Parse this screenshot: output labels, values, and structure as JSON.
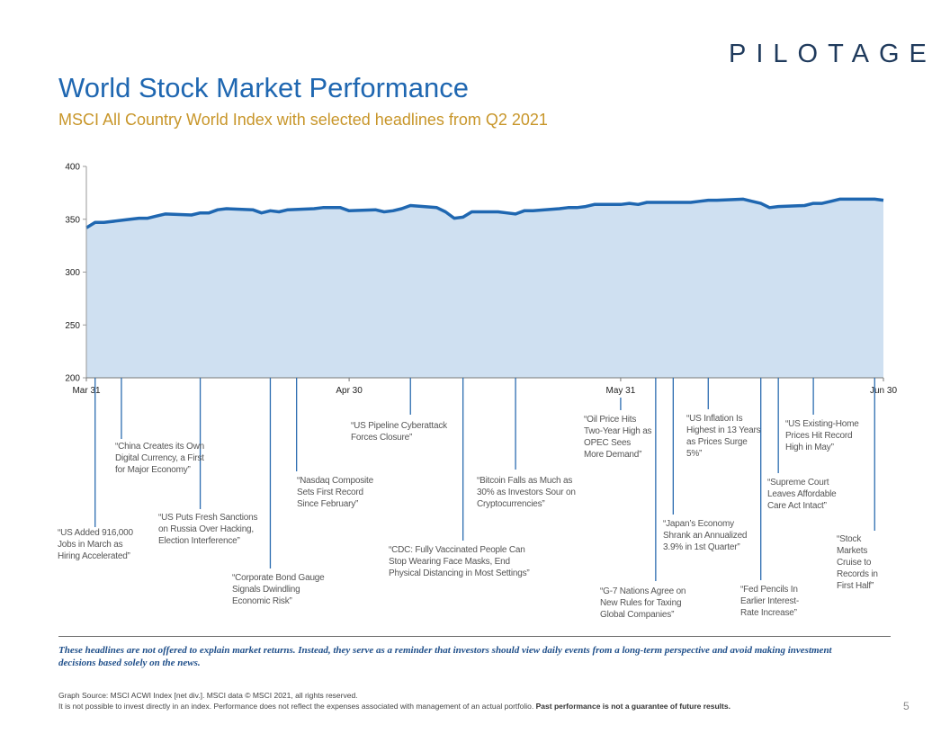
{
  "logo": {
    "text_a": "PIL",
    "text_o": "O",
    "text_b": "TAGE"
  },
  "title": "World Stock Market Performance",
  "subtitle": "MSCI All Country World Index with selected headlines from Q2 2021",
  "colors": {
    "title": "#1f67b1",
    "subtitle": "#c8962a",
    "area_fill": "#cfe0f1",
    "line": "#1f67b1",
    "leader": "#2b6cb0"
  },
  "chart_data": {
    "type": "area",
    "title": "",
    "xlabel": "",
    "ylabel": "",
    "ylim": [
      200,
      400
    ],
    "yticks": [
      "400",
      "350",
      "300",
      "250",
      "200"
    ],
    "yticks_values": [
      400,
      350,
      300,
      250,
      200
    ],
    "xtick_labels": [
      {
        "label": "Mar 31",
        "day": 0
      },
      {
        "label": "Apr 30",
        "day": 30
      },
      {
        "label": "May 31",
        "day": 61
      },
      {
        "label": "Jun 30",
        "day": 91
      }
    ],
    "series": [
      {
        "name": "MSCI ACWI Index (net div.)",
        "x": [
          0,
          1,
          2,
          5,
          6,
          7,
          8,
          9,
          12,
          13,
          14,
          15,
          16,
          19,
          20,
          21,
          22,
          23,
          26,
          27,
          28,
          29,
          30,
          33,
          34,
          35,
          36,
          37,
          40,
          41,
          42,
          43,
          44,
          47,
          48,
          49,
          50,
          51,
          54,
          55,
          56,
          57,
          58,
          61,
          62,
          63,
          64,
          65,
          68,
          69,
          70,
          71,
          72,
          75,
          76,
          77,
          78,
          79,
          82,
          83,
          84,
          85,
          86,
          89,
          90,
          91
        ],
        "values": [
          342,
          347,
          347,
          350,
          351,
          351,
          353,
          355,
          354,
          356,
          356,
          359,
          360,
          359,
          356,
          358,
          357,
          359,
          360,
          361,
          361,
          361,
          358,
          359,
          357,
          358,
          360,
          363,
          361,
          357,
          351,
          352,
          357,
          357,
          356,
          355,
          358,
          358,
          360,
          361,
          361,
          362,
          364,
          364,
          365,
          364,
          366,
          366,
          366,
          366,
          367,
          368,
          368,
          369,
          367,
          365,
          361,
          362,
          363,
          365,
          365,
          367,
          369,
          369,
          369,
          368
        ]
      }
    ]
  },
  "headlines": [
    {
      "text": "“US Added 916,000 Jobs in March as Hiring Accelerated”",
      "day": 1
    },
    {
      "text": "“China Creates its Own Digital Currency, a First for Major Economy”",
      "day": 4
    },
    {
      "text": "“US Puts Fresh Sanctions on Russia Over Hacking, Election Interference”",
      "day": 13
    },
    {
      "text": "“Corporate Bond Gauge Signals Dwindling Economic Risk”",
      "day": 21
    },
    {
      "text": "“Nasdaq Composite Sets First Record Since February”",
      "day": 24
    },
    {
      "text": "“US Pipeline Cyberattack Forces Closure”",
      "day": 37
    },
    {
      "text": "“CDC: Fully Vaccinated People Can Stop Wearing Face Masks, End Physical Distancing in Most Settings”",
      "day": 43
    },
    {
      "text": "“Bitcoin Falls as Much as 30% as Investors Sour on Cryptocurrencies”",
      "day": 49
    },
    {
      "text": "“Oil Price Hits Two-Year High as OPEC Sees More Demand”",
      "day": 61
    },
    {
      "text": "“G-7 Nations Agree on New Rules for Taxing Global Companies”",
      "day": 65
    },
    {
      "text": "“Japan’s Economy Shrank an Annualized 3.9% in 1st Quarter”",
      "day": 67
    },
    {
      "text": "“US Inflation Is Highest in 13 Years as Prices Surge 5%”",
      "day": 71
    },
    {
      "text": "“Fed Pencils In Earlier Interest-Rate Increase”",
      "day": 77
    },
    {
      "text": "“Supreme Court Leaves Affordable Care Act Intact”",
      "day": 79
    },
    {
      "text": "“US Existing-Home Prices Hit Record High in May”",
      "day": 83
    },
    {
      "text": "“Stock Markets Cruise to Records in First Half”",
      "day": 90
    }
  ],
  "note": "These headlines are not offered to explain market returns. Instead, they serve as a reminder that investors should view daily events from a long-term perspective and avoid making investment decisions based solely on the news.",
  "source": {
    "line1": "Graph Source: MSCI ACWI Index [net div.]. MSCI data © MSCI 2021, all rights reserved.",
    "line2_normal": "It is not possible to invest directly in an index. Performance does not reflect the expenses associated with management of an actual portfolio.",
    "line2_bold": "Past performance is not a guarantee of future results."
  },
  "page_number": "5"
}
